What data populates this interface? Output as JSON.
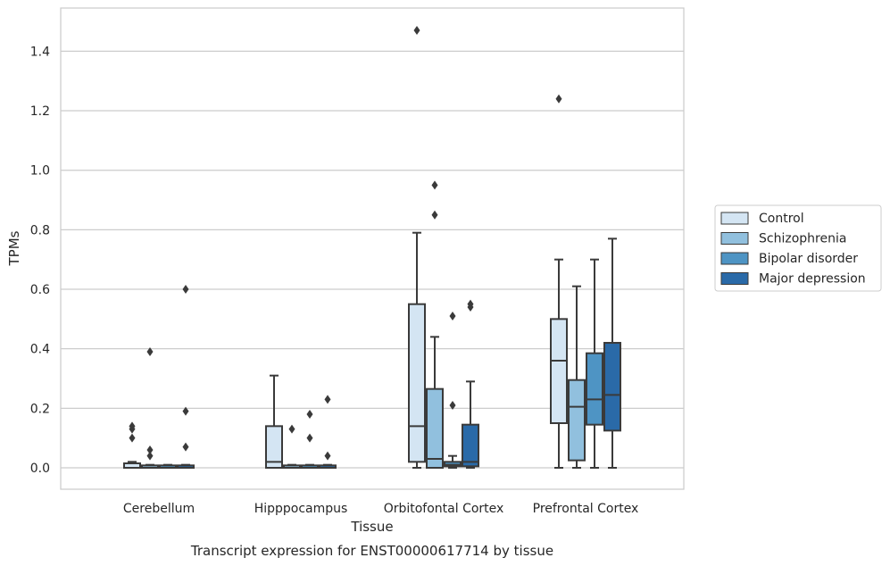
{
  "chart_data": {
    "type": "box",
    "title": "",
    "caption": "Transcript expression for ENST00000617714 by tissue",
    "xlabel": "Tissue",
    "ylabel": "TPMs",
    "ylim": [
      -0.07,
      1.55
    ],
    "yticks": [
      0.0,
      0.2,
      0.4,
      0.6,
      0.8,
      1.0,
      1.2,
      1.4
    ],
    "ytick_labels": [
      "0.0",
      "0.2",
      "0.4",
      "0.6",
      "0.8",
      "1.0",
      "1.2",
      "1.4"
    ],
    "grid": "horizontal",
    "legend_position": "right",
    "categories": [
      "Cerebellum",
      "Hipppocampus",
      "Orbitofontal Cortex",
      "Prefrontal Cortex"
    ],
    "series": [
      {
        "name": "Control",
        "color": "#d4e5f3",
        "boxes": [
          {
            "whisker_low": 0.0,
            "q1": 0.0,
            "median": 0.0,
            "q3": 0.015,
            "whisker_high": 0.02,
            "outliers": [
              0.14,
              0.13,
              0.1
            ]
          },
          {
            "whisker_low": 0.0,
            "q1": 0.0,
            "median": 0.02,
            "q3": 0.14,
            "whisker_high": 0.31,
            "outliers": []
          },
          {
            "whisker_low": 0.0,
            "q1": 0.02,
            "median": 0.14,
            "q3": 0.55,
            "whisker_high": 0.79,
            "outliers": [
              1.47
            ]
          },
          {
            "whisker_low": 0.0,
            "q1": 0.15,
            "median": 0.36,
            "q3": 0.5,
            "whisker_high": 0.7,
            "outliers": [
              1.24
            ]
          }
        ]
      },
      {
        "name": "Schizophrenia",
        "color": "#91c0de",
        "boxes": [
          {
            "whisker_low": 0.0,
            "q1": 0.0,
            "median": 0.0,
            "q3": 0.008,
            "whisker_high": 0.01,
            "outliers": [
              0.39,
              0.06,
              0.04
            ]
          },
          {
            "whisker_low": 0.0,
            "q1": 0.0,
            "median": 0.0,
            "q3": 0.008,
            "whisker_high": 0.01,
            "outliers": [
              0.13
            ]
          },
          {
            "whisker_low": 0.0,
            "q1": 0.0,
            "median": 0.03,
            "q3": 0.265,
            "whisker_high": 0.44,
            "outliers": [
              0.95,
              0.85
            ]
          },
          {
            "whisker_low": 0.0,
            "q1": 0.025,
            "median": 0.205,
            "q3": 0.295,
            "whisker_high": 0.61,
            "outliers": []
          }
        ]
      },
      {
        "name": "Bipolar disorder",
        "color": "#4e94c4",
        "boxes": [
          {
            "whisker_low": 0.0,
            "q1": 0.0,
            "median": 0.0,
            "q3": 0.008,
            "whisker_high": 0.01,
            "outliers": []
          },
          {
            "whisker_low": 0.0,
            "q1": 0.0,
            "median": 0.0,
            "q3": 0.008,
            "whisker_high": 0.01,
            "outliers": [
              0.18,
              0.1
            ]
          },
          {
            "whisker_low": 0.0,
            "q1": 0.005,
            "median": 0.01,
            "q3": 0.02,
            "whisker_high": 0.04,
            "outliers": [
              0.51,
              0.21
            ]
          },
          {
            "whisker_low": 0.0,
            "q1": 0.145,
            "median": 0.23,
            "q3": 0.385,
            "whisker_high": 0.7,
            "outliers": []
          }
        ]
      },
      {
        "name": "Major depression",
        "color": "#2a6aa8",
        "boxes": [
          {
            "whisker_low": 0.0,
            "q1": 0.0,
            "median": 0.0,
            "q3": 0.008,
            "whisker_high": 0.01,
            "outliers": [
              0.6,
              0.19,
              0.07
            ]
          },
          {
            "whisker_low": 0.0,
            "q1": 0.0,
            "median": 0.0,
            "q3": 0.008,
            "whisker_high": 0.01,
            "outliers": [
              0.23,
              0.04
            ]
          },
          {
            "whisker_low": 0.0,
            "q1": 0.005,
            "median": 0.02,
            "q3": 0.145,
            "whisker_high": 0.29,
            "outliers": [
              0.55,
              0.54
            ]
          },
          {
            "whisker_low": 0.0,
            "q1": 0.125,
            "median": 0.245,
            "q3": 0.42,
            "whisker_high": 0.77,
            "outliers": []
          }
        ]
      }
    ]
  }
}
